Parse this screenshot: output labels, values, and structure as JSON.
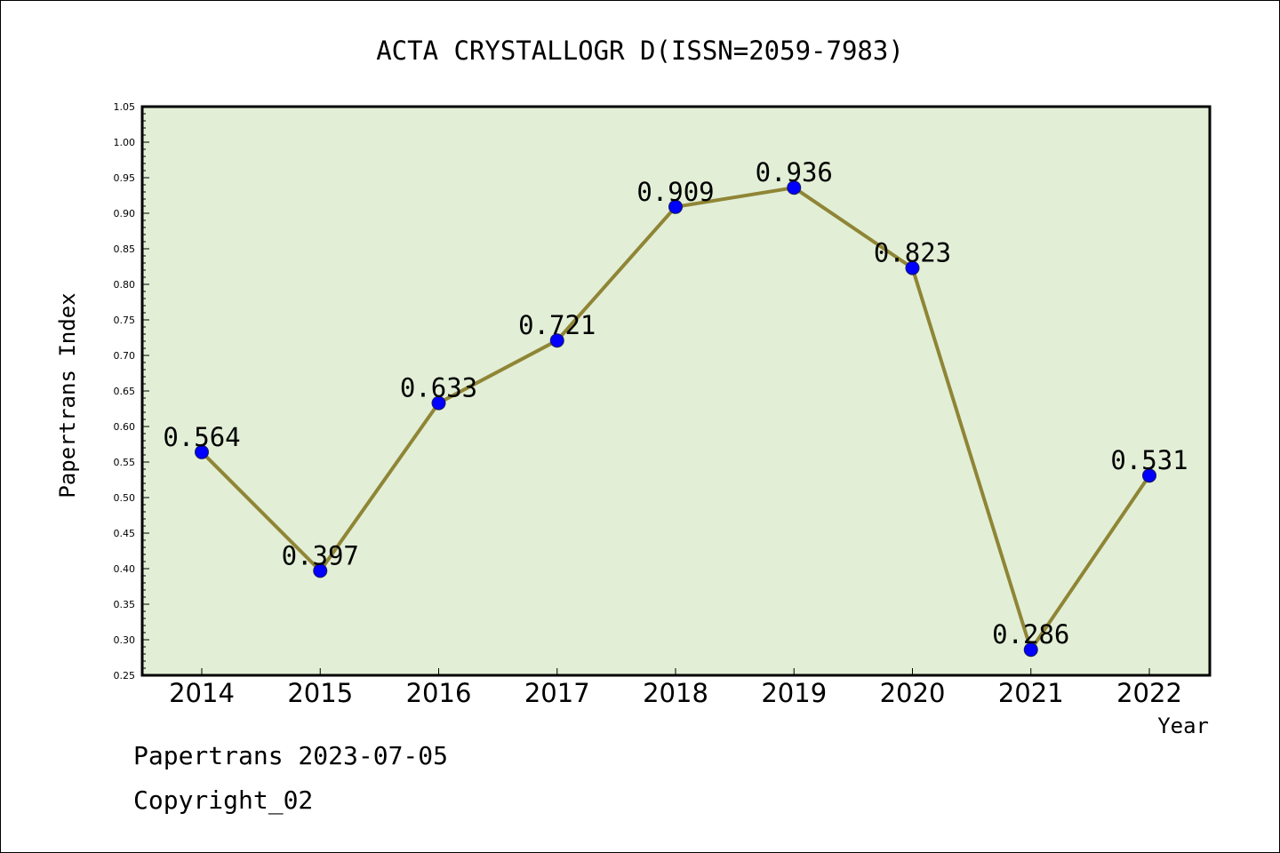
{
  "chart_data": {
    "type": "line",
    "title": "ACTA CRYSTALLOGR D(ISSN=2059-7983)",
    "xlabel": "Year",
    "ylabel": "Papertrans Index",
    "categories": [
      "2014",
      "2015",
      "2016",
      "2017",
      "2018",
      "2019",
      "2020",
      "2021",
      "2022"
    ],
    "values": [
      0.564,
      0.397,
      0.633,
      0.721,
      0.909,
      0.936,
      0.823,
      0.286,
      0.531
    ],
    "data_labels": [
      "0.564",
      "0.397",
      "0.633",
      "0.721",
      "0.909",
      "0.936",
      "0.823",
      "0.286",
      "0.531"
    ],
    "ylim": [
      0.25,
      1.05
    ],
    "yticks": [
      "0.25",
      "0.30",
      "0.35",
      "0.40",
      "0.45",
      "0.50",
      "0.55",
      "0.60",
      "0.65",
      "0.70",
      "0.75",
      "0.80",
      "0.85",
      "0.90",
      "0.95",
      "1.00",
      "1.05"
    ],
    "grid": false,
    "legend": "none",
    "colors": {
      "plot_background": "#e2efd6",
      "line": "#8f8536",
      "marker": "#0000ff"
    }
  },
  "footer": {
    "line1": "Papertrans 2023-07-05",
    "line2": "Copyright_02"
  }
}
